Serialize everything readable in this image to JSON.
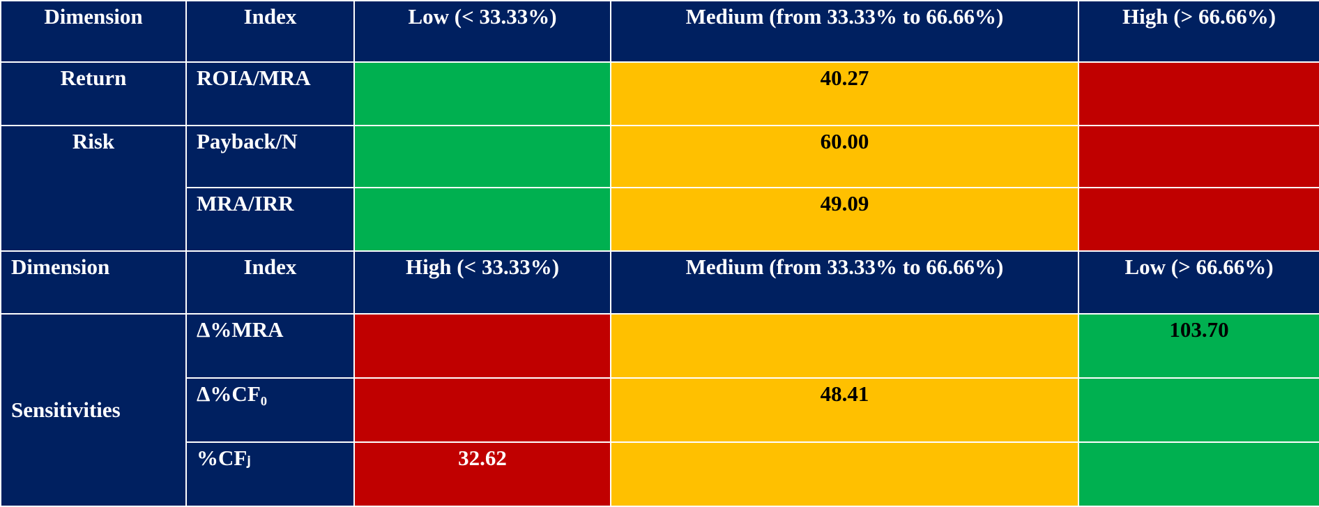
{
  "table1": {
    "header": [
      "Dimension",
      "Index",
      "Low (< 33.33%)",
      "Medium (from 33.33% to 66.66%)",
      "High (> 66.66%)"
    ],
    "rows": [
      {
        "dimension": "Return",
        "index": "ROIA/MRA",
        "value": "40.27"
      },
      {
        "dimension": "Risk",
        "index": "Payback/N",
        "value": "60.00"
      },
      {
        "index": "MRA/IRR",
        "value": "49.09"
      }
    ]
  },
  "table2": {
    "header": [
      "Dimension",
      "Index",
      "High (< 33.33%)",
      "Medium (from 33.33% to 66.66%)",
      "Low (> 66.66%)"
    ],
    "rows": [
      {
        "dimension": "Sensitivities",
        "index": "Δ%MRA",
        "value": "103.70"
      },
      {
        "index": "Δ%CF₀",
        "value": "48.41"
      },
      {
        "index": "%CFⱼ",
        "value": "32.62"
      }
    ]
  }
}
